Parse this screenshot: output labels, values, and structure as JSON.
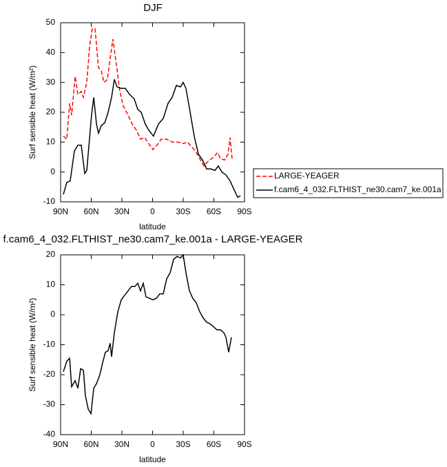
{
  "chart_data": [
    {
      "type": "line",
      "title": "DJF",
      "xlabel": "latitude",
      "ylabel": "Surf sensible heat (W/m²)",
      "xlim": [
        90,
        -90
      ],
      "ylim": [
        -10,
        50
      ],
      "xticks": [
        {
          "value": 90,
          "label": "90N"
        },
        {
          "value": 60,
          "label": "60N"
        },
        {
          "value": 30,
          "label": "30N"
        },
        0,
        {
          "value": -30,
          "label": "30S"
        },
        {
          "value": -60,
          "label": "60S"
        },
        {
          "value": -90,
          "label": "90S"
        }
      ],
      "yticks": [
        -10,
        0,
        10,
        20,
        30,
        40,
        50
      ],
      "legend": "outside-right",
      "series": [
        {
          "name": "LARGE-YEAGER",
          "color": "#ff0000",
          "linestyle": "dashed",
          "x": [
            87.3,
            83.9,
            81.2,
            79.2,
            75.8,
            73.1,
            69.8,
            67.7,
            64.4,
            61.7,
            59.0,
            56.3,
            52.9,
            50.2,
            47.5,
            44.2,
            41.5,
            38.8,
            35.4,
            32.0,
            28.6,
            23.9,
            19.9,
            15.8,
            11.8,
            7.7,
            3.7,
            -0.3,
            -4.4,
            -8.4,
            -13.8,
            -19.2,
            -24.6,
            -30.0,
            -34.1,
            -38.1,
            -42.1,
            -46.2,
            -50.2,
            -54.3,
            -59.7,
            -63.7,
            -66.4,
            -70.5,
            -73.8,
            -75.9,
            -77.9
          ],
          "values": [
            12,
            11,
            23,
            19,
            32,
            26,
            27,
            25,
            30,
            42,
            48,
            48,
            35,
            34,
            30,
            31,
            38,
            44.5,
            36,
            27,
            22,
            19,
            16,
            14,
            11,
            11.5,
            9.5,
            7.5,
            9,
            11,
            11,
            10,
            10,
            9.5,
            10,
            8.5,
            7,
            4.5,
            2,
            3.5,
            5,
            6.5,
            4.5,
            4,
            6,
            11.5,
            4
          ]
        },
        {
          "name": "f.cam6_4_032.FLTHIST_ne30.cam7_ke.001a",
          "color": "#000000",
          "linestyle": "solid",
          "x": [
            87.3,
            83.9,
            80.6,
            76.5,
            73.1,
            69.8,
            66.4,
            64.4,
            59.7,
            57.6,
            54.9,
            52.9,
            50.2,
            46.8,
            43.5,
            40.1,
            37.4,
            34.7,
            30.7,
            26.6,
            22.6,
            17.9,
            14.5,
            11.1,
            7.1,
            3.7,
            -0.9,
            -5.7,
            -10.5,
            -15.2,
            -19.2,
            -23.3,
            -27.3,
            -30.0,
            -32.7,
            -36.8,
            -40.8,
            -44.8,
            -48.9,
            -52.9,
            -57.0,
            -61.0,
            -64.4,
            -67.8,
            -71.8,
            -75.9,
            -79.9,
            -83.3,
            -86.0
          ],
          "values": [
            -7.5,
            -3.5,
            -3,
            7,
            9,
            9,
            -0.5,
            0.5,
            19,
            25,
            16,
            13,
            15.5,
            16.5,
            20,
            25,
            31,
            28.5,
            28,
            28,
            26,
            24.5,
            21,
            20,
            16,
            14,
            12,
            16,
            18,
            23,
            25,
            29,
            28.5,
            30,
            28,
            20,
            12,
            6,
            4,
            1,
            1,
            0.5,
            2,
            0,
            -1,
            -3,
            -6,
            -8.5,
            -8
          ]
        }
      ]
    },
    {
      "type": "line",
      "title": "f.cam6_4_032.FLTHIST_ne30.cam7_ke.001a - LARGE-YEAGER",
      "xlabel": "latitude",
      "ylabel": "Surf sensible heat (W/m²)",
      "xlim": [
        90,
        -90
      ],
      "ylim": [
        -40,
        20
      ],
      "xticks": [
        {
          "value": 90,
          "label": "90N"
        },
        {
          "value": 60,
          "label": "60N"
        },
        {
          "value": 30,
          "label": "30N"
        },
        0,
        {
          "value": -30,
          "label": "30S"
        },
        {
          "value": -60,
          "label": "60S"
        },
        {
          "value": -90,
          "label": "90S"
        }
      ],
      "yticks": [
        -40,
        -30,
        -20,
        -10,
        0,
        10,
        20
      ],
      "color": "#000000",
      "x": [
        87.3,
        83.9,
        81.2,
        79.2,
        75.8,
        73.1,
        70.4,
        67.7,
        65.7,
        63.0,
        60.3,
        57.6,
        54.9,
        51.6,
        48.9,
        46.2,
        43.5,
        41.5,
        40.1,
        37.4,
        34.0,
        30.7,
        27.3,
        23.9,
        20.6,
        17.2,
        14.5,
        11.8,
        9.1,
        6.4,
        3.0,
        -0.3,
        -3.7,
        -7.1,
        -10.5,
        -13.8,
        -17.2,
        -20.6,
        -23.9,
        -27.3,
        -30.0,
        -32.7,
        -36.1,
        -39.4,
        -42.8,
        -46.2,
        -49.5,
        -52.9,
        -56.3,
        -59.7,
        -63.0,
        -66.4,
        -69.8,
        -71.8,
        -74.5,
        -77.2
      ],
      "values": [
        -19,
        -15.5,
        -14.5,
        -24,
        -22,
        -24.5,
        -18,
        -18.5,
        -27,
        -31.5,
        -33,
        -24.5,
        -23,
        -20,
        -16,
        -12.5,
        -12,
        -9.5,
        -14,
        -6,
        1,
        5,
        6.5,
        8,
        9.5,
        9.5,
        10.5,
        8,
        10.5,
        6,
        5.5,
        5,
        5.5,
        7,
        7,
        12,
        14,
        18.5,
        19.5,
        19,
        20,
        14,
        8,
        5.5,
        4,
        1,
        -1,
        -2.5,
        -3,
        -4,
        -5,
        -5,
        -6,
        -7.5,
        -12.5,
        -7.5
      ]
    }
  ]
}
